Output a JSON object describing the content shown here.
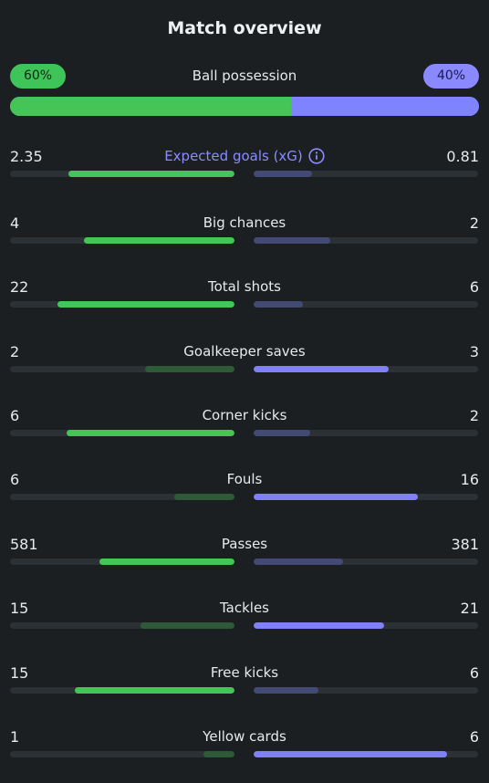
{
  "title": "Match overview",
  "possession": {
    "label": "Ball possession",
    "home_text": "60%",
    "away_text": "40%",
    "home": 60,
    "away": 40
  },
  "colors": {
    "home_strong": "#45c457",
    "home_weak": "#2f5a38",
    "away_strong": "#7f81f5",
    "away_weak": "#434a74",
    "background": "#1b1f22",
    "accent": "#8b8cff"
  },
  "info_icon": "info-circle-icon",
  "stats": [
    {
      "label": "Expected goals (xG)",
      "home": "2.35",
      "away": "0.81",
      "home_ratio": 0.74,
      "away_ratio": 0.26
    },
    {
      "label": "Big chances",
      "home": "4",
      "away": "2",
      "home_ratio": 0.67,
      "away_ratio": 0.34
    },
    {
      "label": "Total shots",
      "home": "22",
      "away": "6",
      "home_ratio": 0.79,
      "away_ratio": 0.22
    },
    {
      "label": "Goalkeeper saves",
      "home": "2",
      "away": "3",
      "home_ratio": 0.4,
      "away_ratio": 0.6
    },
    {
      "label": "Corner kicks",
      "home": "6",
      "away": "2",
      "home_ratio": 0.75,
      "away_ratio": 0.25
    },
    {
      "label": "Fouls",
      "home": "6",
      "away": "16",
      "home_ratio": 0.27,
      "away_ratio": 0.73
    },
    {
      "label": "Passes",
      "home": "581",
      "away": "381",
      "home_ratio": 0.6,
      "away_ratio": 0.4
    },
    {
      "label": "Tackles",
      "home": "15",
      "away": "21",
      "home_ratio": 0.42,
      "away_ratio": 0.58
    },
    {
      "label": "Free kicks",
      "home": "15",
      "away": "6",
      "home_ratio": 0.71,
      "away_ratio": 0.29
    },
    {
      "label": "Yellow cards",
      "home": "1",
      "away": "6",
      "home_ratio": 0.14,
      "away_ratio": 0.86
    }
  ]
}
